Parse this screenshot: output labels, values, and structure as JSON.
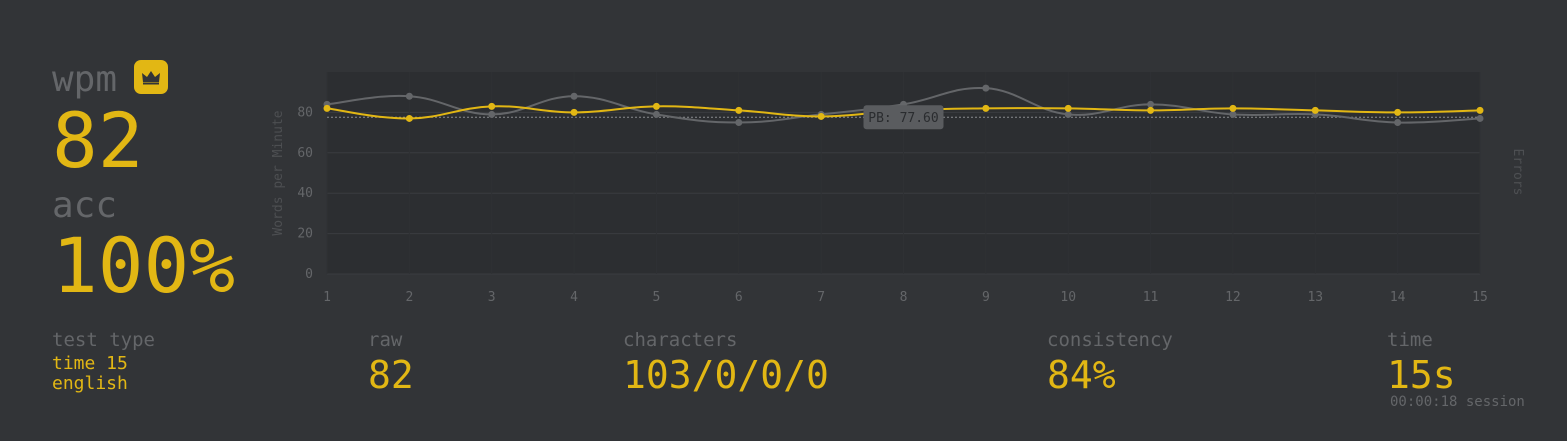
{
  "stats": {
    "wpm_label": "wpm",
    "wpm_value": "82",
    "acc_label": "acc",
    "acc_value": "100%"
  },
  "details": {
    "test_type_label": "test type",
    "test_type_line1": "time 15",
    "test_type_line2": "english",
    "raw_label": "raw",
    "raw_value": "82",
    "characters_label": "characters",
    "characters_value": "103/0/0/0",
    "consistency_label": "consistency",
    "consistency_value": "84%",
    "time_label": "time",
    "time_value": "15s",
    "session": "00:00:18 session"
  },
  "colors": {
    "background": "#323437",
    "accent": "#e2b714",
    "sub": "#646669",
    "plot_bg": "#2c2e31"
  },
  "icons": {
    "pb_badge": "crown-icon"
  },
  "chart_data": {
    "type": "line",
    "x": [
      1,
      2,
      3,
      4,
      5,
      6,
      7,
      8,
      9,
      10,
      11,
      12,
      13,
      14,
      15
    ],
    "series": [
      {
        "name": "",
        "color": "#e2b714",
        "values": [
          82,
          77,
          83,
          80,
          83,
          81,
          78,
          81,
          82,
          82,
          81,
          82,
          81,
          80,
          81
        ]
      },
      {
        "name": "",
        "color": "#646669",
        "values": [
          84,
          88,
          79,
          88,
          79,
          75,
          79,
          84,
          92,
          79,
          84,
          79,
          79,
          75,
          77
        ]
      }
    ],
    "ylabel": "Words per Minute",
    "y2label": "Errors",
    "yticks": [
      0,
      20,
      40,
      60,
      80
    ],
    "ylim": [
      0,
      100
    ],
    "xlim": [
      1,
      15
    ],
    "pb_line": 77.6,
    "pb_label": "PB: 77.60",
    "grid": true
  }
}
